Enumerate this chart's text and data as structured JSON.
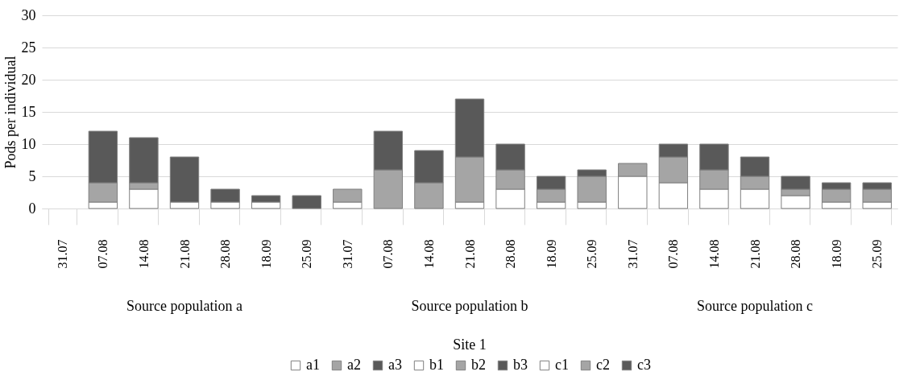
{
  "chart_data": {
    "type": "bar",
    "stacked": true,
    "ylabel": "Pods per individual",
    "categories": [
      "31.07",
      "07.08",
      "14.08",
      "21.08",
      "28.08",
      "18.09",
      "25.09",
      "31.07",
      "07.08",
      "14.08",
      "21.08",
      "28.08",
      "18.09",
      "25.09",
      "31.07",
      "07.08",
      "14.08",
      "21.08",
      "28.08",
      "18.09",
      "25.09"
    ],
    "series": [
      {
        "name": "a1",
        "color": "#ffffff",
        "values": [
          0,
          1,
          3,
          1,
          1,
          1,
          0,
          null,
          null,
          null,
          null,
          null,
          null,
          null,
          null,
          null,
          null,
          null,
          null,
          null,
          null
        ]
      },
      {
        "name": "a2",
        "color": "#a5a5a5",
        "values": [
          0,
          3,
          1,
          0,
          0,
          0,
          0,
          null,
          null,
          null,
          null,
          null,
          null,
          null,
          null,
          null,
          null,
          null,
          null,
          null,
          null
        ]
      },
      {
        "name": "a3",
        "color": "#595959",
        "values": [
          0,
          8,
          7,
          7,
          2,
          1,
          2,
          null,
          null,
          null,
          null,
          null,
          null,
          null,
          null,
          null,
          null,
          null,
          null,
          null,
          null
        ]
      },
      {
        "name": "b1",
        "color": "#ffffff",
        "values": [
          null,
          null,
          null,
          null,
          null,
          null,
          null,
          1,
          0,
          0,
          1,
          3,
          1,
          1,
          null,
          null,
          null,
          null,
          null,
          null,
          null
        ]
      },
      {
        "name": "b2",
        "color": "#a5a5a5",
        "values": [
          null,
          null,
          null,
          null,
          null,
          null,
          null,
          2,
          6,
          4,
          7,
          3,
          2,
          4,
          null,
          null,
          null,
          null,
          null,
          null,
          null
        ]
      },
      {
        "name": "b3",
        "color": "#595959",
        "values": [
          null,
          null,
          null,
          null,
          null,
          null,
          null,
          0,
          6,
          5,
          9,
          4,
          2,
          1,
          null,
          null,
          null,
          null,
          null,
          null,
          null
        ]
      },
      {
        "name": "c1",
        "color": "#ffffff",
        "values": [
          null,
          null,
          null,
          null,
          null,
          null,
          null,
          null,
          null,
          null,
          null,
          null,
          null,
          null,
          5,
          4,
          3,
          3,
          2,
          1,
          1
        ]
      },
      {
        "name": "c2",
        "color": "#a5a5a5",
        "values": [
          null,
          null,
          null,
          null,
          null,
          null,
          null,
          null,
          null,
          null,
          null,
          null,
          null,
          null,
          2,
          4,
          3,
          2,
          1,
          2,
          2
        ]
      },
      {
        "name": "c3",
        "color": "#595959",
        "values": [
          null,
          null,
          null,
          null,
          null,
          null,
          null,
          null,
          null,
          null,
          null,
          null,
          null,
          null,
          0,
          2,
          4,
          3,
          2,
          1,
          1
        ]
      }
    ],
    "ylim": [
      0,
      30
    ],
    "yticks": [
      0,
      5,
      10,
      15,
      20,
      25,
      30
    ],
    "grid": "y",
    "legend": "bottom",
    "annotations": [
      "Source population a",
      "Source population b",
      "Source population c",
      "Site 1"
    ]
  }
}
